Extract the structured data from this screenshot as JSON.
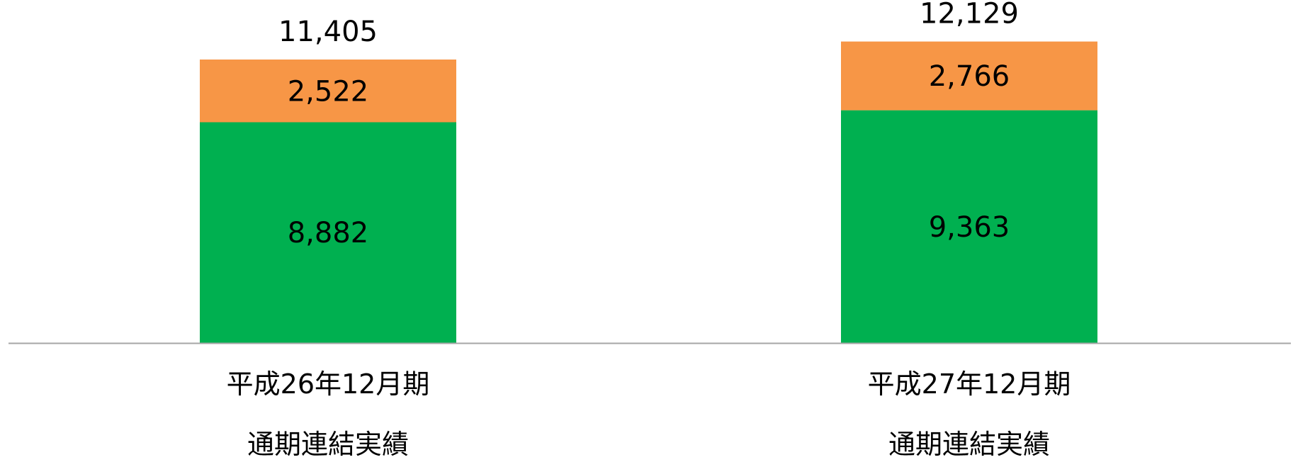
{
  "chart_data": {
    "type": "bar",
    "stacked": true,
    "categories": [
      [
        "平成26年12月期",
        "通期連結実績"
      ],
      [
        "平成27年12月期",
        "通期連結実績"
      ]
    ],
    "series": [
      {
        "values": [
          8882,
          9363
        ],
        "color": "#00b050"
      },
      {
        "values": [
          2522,
          2766
        ],
        "color": "#f79646"
      }
    ],
    "value_labels": [
      [
        "8,882",
        "9,363"
      ],
      [
        "2,522",
        "2,766"
      ]
    ],
    "total_labels": [
      "11,405",
      "12,129"
    ],
    "totals": [
      11405,
      12129
    ],
    "title": "",
    "xlabel": "",
    "ylabel": "",
    "ylim": [
      0,
      13800
    ],
    "axis_color": "#a6a6a6",
    "grid": false,
    "legend": "none"
  }
}
